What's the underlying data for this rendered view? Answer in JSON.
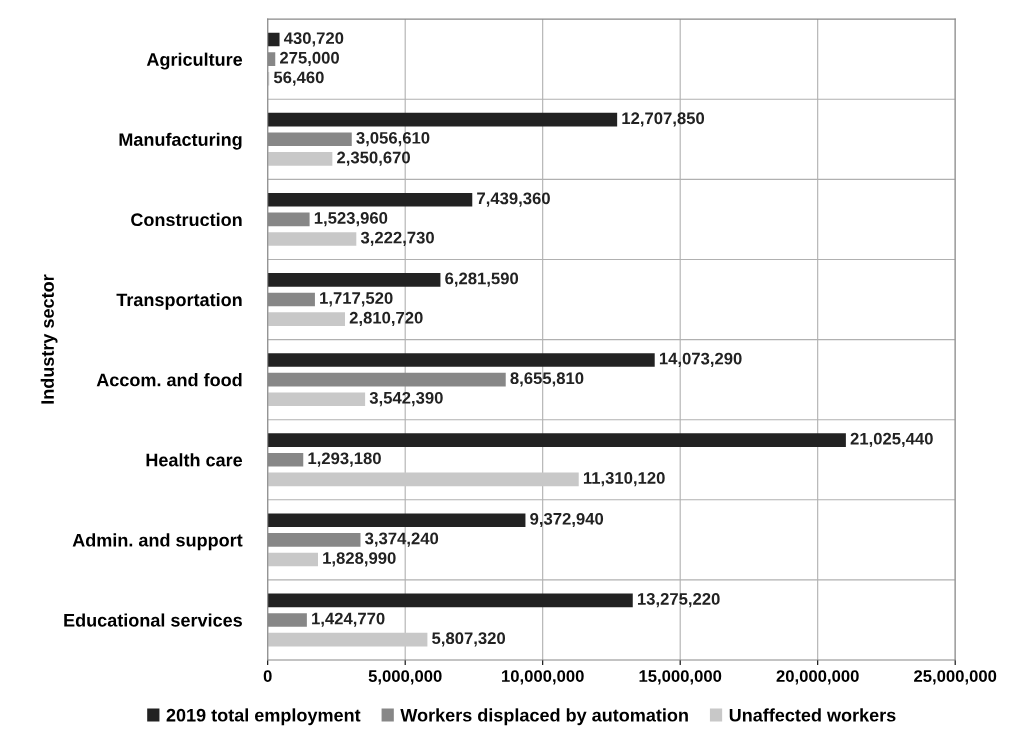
{
  "chart_data": {
    "type": "bar",
    "orientation": "horizontal",
    "ylabel": "Industry sector",
    "categories": [
      "Agriculture",
      "Manufacturing",
      "Construction",
      "Transportation",
      "Accom. and food",
      "Health care",
      "Admin. and support",
      "Educational services"
    ],
    "series": [
      {
        "name": "2019 total employment",
        "color": "#222222",
        "values": [
          430720,
          12707850,
          7439360,
          6281590,
          14073290,
          21025440,
          9372940,
          13275220
        ],
        "value_labels": [
          "430,720",
          "12,707,850",
          "7,439,360",
          "6,281,590",
          "14,073,290",
          "21,025,440",
          "9,372,940",
          "13,275,220"
        ]
      },
      {
        "name": "Workers displaced by automation",
        "color": "#878787",
        "values": [
          275000,
          3056610,
          1523960,
          1717520,
          8655810,
          1293180,
          3374240,
          1424770
        ],
        "value_labels": [
          "275,000",
          "3,056,610",
          "1,523,960",
          "1,717,520",
          "8,655,810",
          "1,293,180",
          "3,374,240",
          "1,424,770"
        ]
      },
      {
        "name": "Unaffected workers",
        "color": "#c8c8c8",
        "values": [
          56460,
          2350670,
          3222730,
          2810720,
          3542390,
          11310120,
          1828990,
          5807320
        ],
        "value_labels": [
          "56,460",
          "2,350,670",
          "3,222,730",
          "2,810,720",
          "3,542,390",
          "11,310,120",
          "1,828,990",
          "5,807,320"
        ]
      }
    ],
    "xlim": [
      0,
      25000000
    ],
    "xticks": [
      {
        "value": 0,
        "label": "0"
      },
      {
        "value": 5000000,
        "label": "5,000,000"
      },
      {
        "value": 10000000,
        "label": "10,000,000"
      },
      {
        "value": 15000000,
        "label": "15,000,000"
      },
      {
        "value": 20000000,
        "label": "20,000,000"
      },
      {
        "value": 25000000,
        "label": "25,000,000"
      }
    ],
    "grid": true,
    "legend": "bottom"
  }
}
